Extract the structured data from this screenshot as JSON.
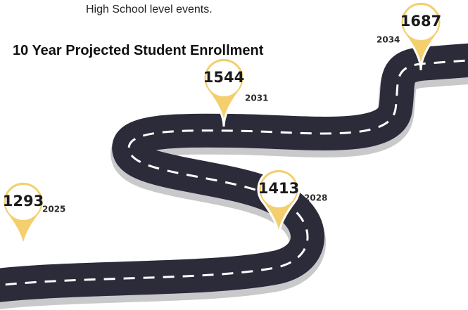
{
  "intro": "High School level events.",
  "title": "10 Year Projected Student Enrollment",
  "milestones": [
    {
      "value": 1293,
      "year": "2025"
    },
    {
      "value": 1413,
      "year": "2028"
    },
    {
      "value": 1544,
      "year": "2031"
    },
    {
      "value": 1687,
      "year": "2034"
    }
  ]
}
